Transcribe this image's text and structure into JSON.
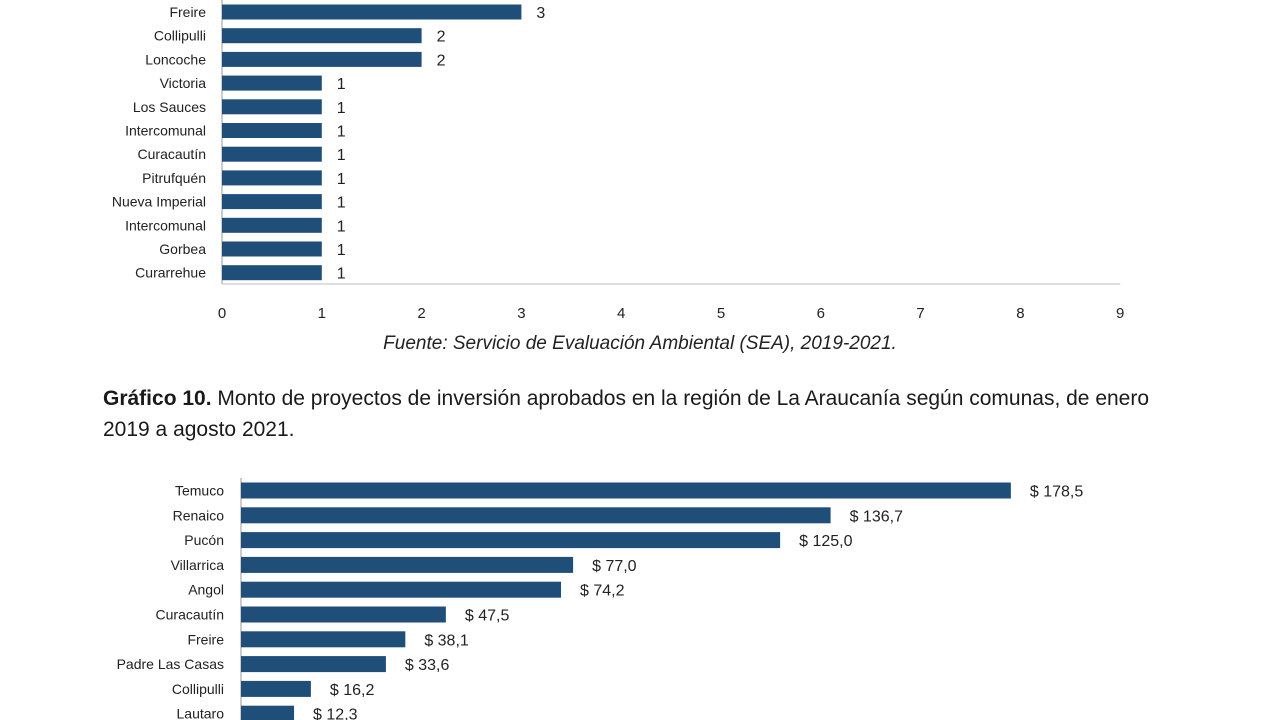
{
  "chart_data": [
    {
      "type": "bar",
      "orientation": "horizontal",
      "categories": [
        "Freire",
        "Collipulli",
        "Loncoche",
        "Victoria",
        "Los Sauces",
        "Intercomunal",
        "Curacautín",
        "Pitrufquén",
        "Nueva Imperial",
        "Intercomunal",
        "Gorbea",
        "Curarrehue"
      ],
      "values": [
        3,
        2,
        2,
        1,
        1,
        1,
        1,
        1,
        1,
        1,
        1,
        1
      ],
      "data_labels": [
        "3",
        "2",
        "2",
        "1",
        "1",
        "1",
        "1",
        "1",
        "1",
        "1",
        "1",
        "1"
      ],
      "xlim": [
        0,
        9
      ],
      "xticks": [
        "0",
        "1",
        "2",
        "3",
        "4",
        "5",
        "6",
        "7",
        "8",
        "9"
      ],
      "bar_color": "#1f4e79",
      "grid": false
    },
    {
      "type": "bar",
      "orientation": "horizontal",
      "categories": [
        "Temuco",
        "Renaico",
        "Pucón",
        "Villarrica",
        "Angol",
        "Curacautín",
        "Freire",
        "Padre Las Casas",
        "Collipulli",
        "Lautaro"
      ],
      "values": [
        178.5,
        136.7,
        125.0,
        77.0,
        74.2,
        47.5,
        38.1,
        33.6,
        16.2,
        12.3
      ],
      "data_labels": [
        "$ 178,5",
        "$ 136,7",
        "$ 125,0",
        "$ 77,0",
        "$ 74,2",
        "$ 47,5",
        "$ 38,1",
        "$ 33,6",
        "$ 16,2",
        "$ 12,3"
      ],
      "bar_color": "#1f4e79",
      "grid": false
    }
  ],
  "source_note": "Fuente: Servicio de Evaluación Ambiental (SEA), 2019-2021.",
  "caption": {
    "label": "Gráfico 10.",
    "text": " Monto de proyectos de inversión aprobados en la región de La Araucanía según comunas, de enero 2019 a agosto 2021."
  }
}
